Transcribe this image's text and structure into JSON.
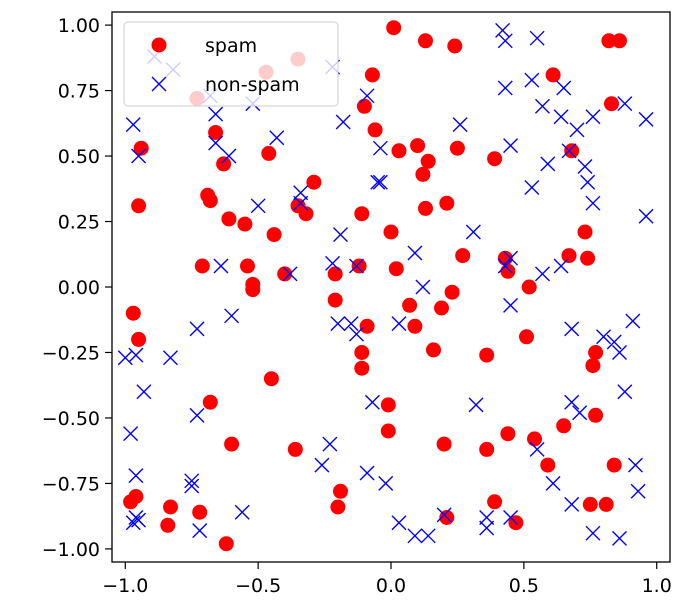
{
  "chart_data": {
    "type": "scatter",
    "title": "",
    "xlabel": "",
    "ylabel": "",
    "xlim": [
      -1.05,
      1.05
    ],
    "ylim": [
      -1.05,
      1.05
    ],
    "x_ticks": [
      "−1.0",
      "−0.5",
      "0.0",
      "0.5",
      "1.0"
    ],
    "y_ticks": [
      "1.00",
      "0.75",
      "0.50",
      "0.25",
      "0.00",
      "−0.25",
      "−0.50",
      "−0.75",
      "−1.00"
    ],
    "grid": false,
    "legend_position": "top-left",
    "series": [
      {
        "name": "spam",
        "marker": "circle",
        "color": "#ff0000",
        "points": [
          [
            0.01,
            0.99
          ],
          [
            0.13,
            0.94
          ],
          [
            0.24,
            0.92
          ],
          [
            0.82,
            0.94
          ],
          [
            0.86,
            0.94
          ],
          [
            -0.35,
            0.87
          ],
          [
            -0.47,
            0.82
          ],
          [
            -0.07,
            0.81
          ],
          [
            0.61,
            0.81
          ],
          [
            0.83,
            0.7
          ],
          [
            -0.73,
            0.72
          ],
          [
            -0.1,
            0.69
          ],
          [
            -0.66,
            0.59
          ],
          [
            -0.06,
            0.6
          ],
          [
            -0.94,
            0.53
          ],
          [
            -0.46,
            0.51
          ],
          [
            0.03,
            0.52
          ],
          [
            0.1,
            0.54
          ],
          [
            0.14,
            0.48
          ],
          [
            0.25,
            0.53
          ],
          [
            0.39,
            0.49
          ],
          [
            0.68,
            0.52
          ],
          [
            -0.63,
            0.47
          ],
          [
            0.12,
            0.43
          ],
          [
            -0.29,
            0.4
          ],
          [
            -0.69,
            0.35
          ],
          [
            -0.68,
            0.33
          ],
          [
            -0.95,
            0.31
          ],
          [
            -0.35,
            0.31
          ],
          [
            -0.32,
            0.28
          ],
          [
            -0.11,
            0.28
          ],
          [
            0.13,
            0.3
          ],
          [
            0.21,
            0.32
          ],
          [
            -0.61,
            0.26
          ],
          [
            -0.55,
            0.24
          ],
          [
            -0.44,
            0.2
          ],
          [
            0.0,
            0.21
          ],
          [
            0.73,
            0.21
          ],
          [
            -0.71,
            0.08
          ],
          [
            -0.54,
            0.08
          ],
          [
            -0.4,
            0.05
          ],
          [
            -0.21,
            0.05
          ],
          [
            -0.12,
            0.08
          ],
          [
            0.02,
            0.07
          ],
          [
            0.27,
            0.12
          ],
          [
            0.43,
            0.11
          ],
          [
            0.44,
            0.06
          ],
          [
            0.67,
            0.12
          ],
          [
            0.74,
            0.11
          ],
          [
            -0.52,
            0.01
          ],
          [
            -0.52,
            -0.01
          ],
          [
            -0.21,
            -0.05
          ],
          [
            0.23,
            -0.02
          ],
          [
            0.52,
            0.0
          ],
          [
            -0.97,
            -0.1
          ],
          [
            0.07,
            -0.07
          ],
          [
            0.19,
            -0.08
          ],
          [
            -0.09,
            -0.15
          ],
          [
            0.09,
            -0.15
          ],
          [
            -0.95,
            -0.2
          ],
          [
            0.51,
            -0.19
          ],
          [
            -0.11,
            -0.25
          ],
          [
            0.16,
            -0.24
          ],
          [
            0.36,
            -0.26
          ],
          [
            0.77,
            -0.25
          ],
          [
            -0.11,
            -0.31
          ],
          [
            0.76,
            -0.3
          ],
          [
            -0.45,
            -0.35
          ],
          [
            -0.68,
            -0.44
          ],
          [
            -0.01,
            -0.45
          ],
          [
            0.77,
            -0.49
          ],
          [
            -0.01,
            -0.55
          ],
          [
            0.65,
            -0.53
          ],
          [
            -0.6,
            -0.6
          ],
          [
            -0.36,
            -0.62
          ],
          [
            0.2,
            -0.6
          ],
          [
            0.36,
            -0.62
          ],
          [
            0.44,
            -0.56
          ],
          [
            0.54,
            -0.58
          ],
          [
            0.59,
            -0.68
          ],
          [
            0.84,
            -0.68
          ],
          [
            -0.19,
            -0.78
          ],
          [
            -0.98,
            -0.82
          ],
          [
            -0.96,
            -0.8
          ],
          [
            -0.83,
            -0.84
          ],
          [
            -0.72,
            -0.86
          ],
          [
            -0.2,
            -0.84
          ],
          [
            0.39,
            -0.82
          ],
          [
            0.75,
            -0.83
          ],
          [
            0.81,
            -0.83
          ],
          [
            -0.84,
            -0.91
          ],
          [
            0.21,
            -0.88
          ],
          [
            0.47,
            -0.9
          ],
          [
            -0.62,
            -0.98
          ]
        ]
      },
      {
        "name": "non-spam",
        "marker": "x",
        "color": "#0000ff",
        "points": [
          [
            -0.89,
            0.88
          ],
          [
            -0.82,
            0.83
          ],
          [
            -0.22,
            0.84
          ],
          [
            0.42,
            0.98
          ],
          [
            0.43,
            0.94
          ],
          [
            0.55,
            0.95
          ],
          [
            0.43,
            0.76
          ],
          [
            -0.68,
            0.73
          ],
          [
            -0.52,
            0.7
          ],
          [
            -0.09,
            0.73
          ],
          [
            0.53,
            0.79
          ],
          [
            0.65,
            0.76
          ],
          [
            0.88,
            0.7
          ],
          [
            -0.97,
            0.62
          ],
          [
            -0.66,
            0.66
          ],
          [
            -0.43,
            0.57
          ],
          [
            -0.18,
            0.63
          ],
          [
            0.26,
            0.62
          ],
          [
            0.57,
            0.69
          ],
          [
            0.64,
            0.65
          ],
          [
            0.7,
            0.6
          ],
          [
            0.76,
            0.65
          ],
          [
            0.96,
            0.64
          ],
          [
            -0.66,
            0.55
          ],
          [
            -0.61,
            0.5
          ],
          [
            -0.04,
            0.53
          ],
          [
            0.45,
            0.54
          ],
          [
            -0.95,
            0.5
          ],
          [
            0.59,
            0.47
          ],
          [
            0.67,
            0.52
          ],
          [
            0.73,
            0.46
          ],
          [
            0.74,
            0.4
          ],
          [
            -0.05,
            0.4
          ],
          [
            -0.04,
            0.4
          ],
          [
            0.53,
            0.38
          ],
          [
            -0.34,
            0.36
          ],
          [
            -0.34,
            0.32
          ],
          [
            -0.5,
            0.31
          ],
          [
            0.76,
            0.32
          ],
          [
            0.96,
            0.27
          ],
          [
            -0.19,
            0.2
          ],
          [
            0.31,
            0.21
          ],
          [
            0.09,
            0.13
          ],
          [
            0.45,
            0.11
          ],
          [
            -0.64,
            0.08
          ],
          [
            -0.38,
            0.05
          ],
          [
            -0.22,
            0.09
          ],
          [
            -0.13,
            0.08
          ],
          [
            0.43,
            0.08
          ],
          [
            0.57,
            0.05
          ],
          [
            0.64,
            0.08
          ],
          [
            0.12,
            0.0
          ],
          [
            -0.6,
            -0.11
          ],
          [
            0.45,
            -0.07
          ],
          [
            -0.73,
            -0.16
          ],
          [
            -0.2,
            -0.14
          ],
          [
            -0.15,
            -0.14
          ],
          [
            -0.13,
            -0.18
          ],
          [
            0.03,
            -0.14
          ],
          [
            0.8,
            -0.19
          ],
          [
            0.84,
            -0.21
          ],
          [
            0.91,
            -0.13
          ],
          [
            -1.0,
            -0.27
          ],
          [
            -0.96,
            -0.26
          ],
          [
            -0.83,
            -0.27
          ],
          [
            0.68,
            -0.16
          ],
          [
            0.86,
            -0.25
          ],
          [
            -0.93,
            -0.4
          ],
          [
            0.88,
            -0.4
          ],
          [
            0.32,
            -0.45
          ],
          [
            -0.07,
            -0.44
          ],
          [
            0.68,
            -0.44
          ],
          [
            -0.73,
            -0.49
          ],
          [
            0.71,
            -0.48
          ],
          [
            -0.98,
            -0.56
          ],
          [
            0.55,
            -0.62
          ],
          [
            -0.23,
            -0.6
          ],
          [
            -0.26,
            -0.68
          ],
          [
            -0.09,
            -0.71
          ],
          [
            0.92,
            -0.68
          ],
          [
            -0.96,
            -0.72
          ],
          [
            -0.75,
            -0.74
          ],
          [
            -0.75,
            -0.76
          ],
          [
            0.61,
            -0.75
          ],
          [
            0.68,
            -0.83
          ],
          [
            0.93,
            -0.78
          ],
          [
            -0.56,
            -0.86
          ],
          [
            -0.02,
            -0.75
          ],
          [
            0.36,
            -0.88
          ],
          [
            0.45,
            -0.88
          ],
          [
            -0.97,
            -0.9
          ],
          [
            -0.95,
            -0.89
          ],
          [
            -0.96,
            -0.88
          ],
          [
            -0.72,
            -0.93
          ],
          [
            0.03,
            -0.9
          ],
          [
            0.09,
            -0.95
          ],
          [
            0.14,
            -0.95
          ],
          [
            0.36,
            -0.92
          ],
          [
            0.2,
            -0.87
          ],
          [
            0.76,
            -0.94
          ],
          [
            0.86,
            -0.96
          ]
        ]
      }
    ]
  }
}
